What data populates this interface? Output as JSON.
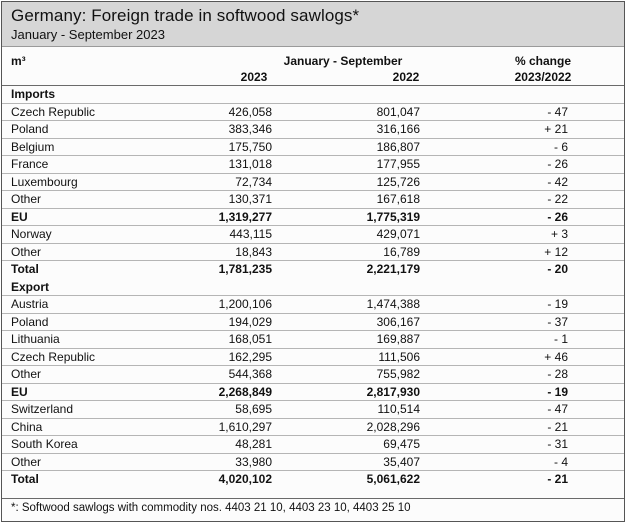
{
  "title": "Germany: Foreign trade in softwood sawlogs*",
  "subtitle": "January - September 2023",
  "columns": {
    "unit": "m³",
    "period": "January - September",
    "year1": "2023",
    "year2": "2022",
    "change_line1": "% change",
    "change_line2": "2023/2022"
  },
  "rows": [
    {
      "name": "Imports",
      "v23": "",
      "v22": "",
      "pct": "",
      "kind": "section"
    },
    {
      "name": "Czech Republic",
      "v23": "426,058",
      "v22": "801,047",
      "pct": "- 47",
      "kind": "data"
    },
    {
      "name": "Poland",
      "v23": "383,346",
      "v22": "316,166",
      "pct": "+ 21",
      "kind": "data"
    },
    {
      "name": "Belgium",
      "v23": "175,750",
      "v22": "186,807",
      "pct": "- 6",
      "kind": "data"
    },
    {
      "name": "France",
      "v23": "131,018",
      "v22": "177,955",
      "pct": "- 26",
      "kind": "data"
    },
    {
      "name": "Luxembourg",
      "v23": "72,734",
      "v22": "125,726",
      "pct": "- 42",
      "kind": "data"
    },
    {
      "name": "Other",
      "v23": "130,371",
      "v22": "167,618",
      "pct": "- 22",
      "kind": "data"
    },
    {
      "name": "EU",
      "v23": "1,319,277",
      "v22": "1,775,319",
      "pct": "- 26",
      "kind": "bold"
    },
    {
      "name": "Norway",
      "v23": "443,115",
      "v22": "429,071",
      "pct": "+ 3",
      "kind": "data"
    },
    {
      "name": "Other",
      "v23": "18,843",
      "v22": "16,789",
      "pct": "+ 12",
      "kind": "data"
    },
    {
      "name": "Total",
      "v23": "1,781,235",
      "v22": "2,221,179",
      "pct": "- 20",
      "kind": "bold"
    },
    {
      "name": "Export",
      "v23": "",
      "v22": "",
      "pct": "",
      "kind": "section"
    },
    {
      "name": "Austria",
      "v23": "1,200,106",
      "v22": "1,474,388",
      "pct": "- 19",
      "kind": "data"
    },
    {
      "name": "Poland",
      "v23": "194,029",
      "v22": "306,167",
      "pct": "- 37",
      "kind": "data"
    },
    {
      "name": "Lithuania",
      "v23": "168,051",
      "v22": "169,887",
      "pct": "- 1",
      "kind": "data"
    },
    {
      "name": "Czech Republic",
      "v23": "162,295",
      "v22": "111,506",
      "pct": "+ 46",
      "kind": "data"
    },
    {
      "name": "Other",
      "v23": "544,368",
      "v22": "755,982",
      "pct": "- 28",
      "kind": "data"
    },
    {
      "name": "EU",
      "v23": "2,268,849",
      "v22": "2,817,930",
      "pct": "- 19",
      "kind": "bold"
    },
    {
      "name": "Switzerland",
      "v23": "58,695",
      "v22": "110,514",
      "pct": "- 47",
      "kind": "data"
    },
    {
      "name": "China",
      "v23": "1,610,297",
      "v22": "2,028,296",
      "pct": "- 21",
      "kind": "data"
    },
    {
      "name": "South Korea",
      "v23": "48,281",
      "v22": "69,475",
      "pct": "- 31",
      "kind": "data"
    },
    {
      "name": "Other",
      "v23": "33,980",
      "v22": "35,407",
      "pct": "- 4",
      "kind": "data"
    },
    {
      "name": "Total",
      "v23": "4,020,102",
      "v22": "5,061,622",
      "pct": "- 21",
      "kind": "bold"
    }
  ],
  "footnote": "*: Softwood sawlogs with commodity nos. 4403 21 10, 4403 23 10, 4403 25 10"
}
